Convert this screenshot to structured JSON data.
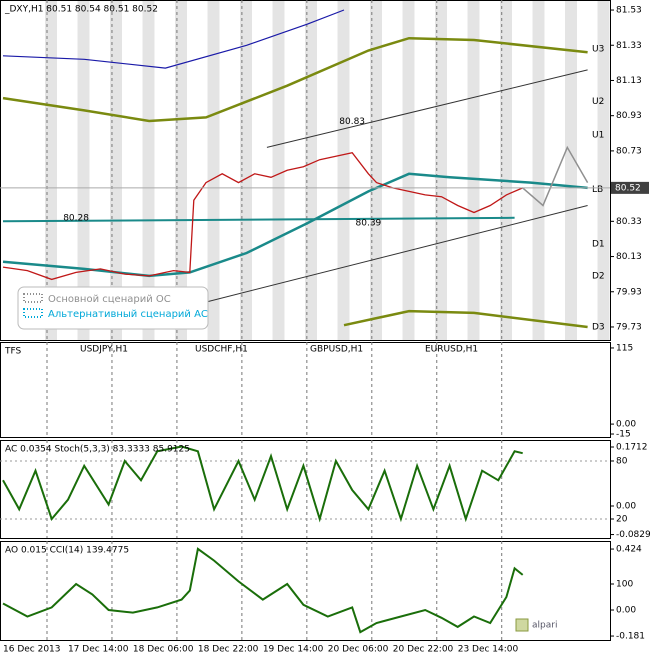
{
  "chart_data": [
    {
      "type": "line",
      "title": "_DXY,H1  80.51 80.54 80.51 80.52",
      "xlim": [
        0,
        150
      ],
      "ylim": [
        79.656,
        81.587
      ],
      "yticks": [
        81.53,
        81.33,
        81.13,
        80.93,
        80.73,
        80.33,
        80.13,
        79.93,
        79.73
      ],
      "last": 80.52,
      "levels": [
        {
          "label": "U3",
          "value": 81.31
        },
        {
          "label": "U2",
          "value": 81.01
        },
        {
          "label": "U1",
          "value": 80.82
        },
        {
          "label": "LB",
          "value": 80.51
        },
        {
          "label": "D1",
          "value": 80.2
        },
        {
          "label": "D2",
          "value": 80.02
        },
        {
          "label": "D3",
          "value": 79.73
        }
      ],
      "annotations": [
        {
          "x": 86,
          "value": 80.83,
          "position": "above"
        },
        {
          "x": 18,
          "value": 80.28,
          "position": "above"
        },
        {
          "x": 90,
          "value": 80.39,
          "position": "below"
        }
      ],
      "legend": [
        {
          "label": "Основной сценарий ОС",
          "color": "#909090"
        },
        {
          "label": "Альтернативный сценарий АС",
          "color": "#00a8d8"
        }
      ],
      "series": [
        {
          "color": "#1a1aa8",
          "width": 1.2,
          "x": [
            0,
            20,
            40,
            60,
            75,
            84
          ],
          "values": [
            81.27,
            81.25,
            81.2,
            81.33,
            81.45,
            81.53
          ]
        },
        {
          "color": "#7a8a10",
          "width": 2.5,
          "x": [
            0,
            20,
            36,
            50,
            70,
            90,
            100,
            116,
            144
          ],
          "values": [
            81.03,
            80.96,
            80.9,
            80.92,
            81.1,
            81.3,
            81.37,
            81.36,
            81.29
          ]
        },
        {
          "color": "#7a8a10",
          "width": 2.5,
          "x": [
            84,
            100,
            116,
            144
          ],
          "values": [
            79.74,
            79.82,
            79.81,
            79.73
          ]
        },
        {
          "color": "#1a8a8a",
          "width": 2.5,
          "x": [
            0,
            20,
            36,
            46,
            60,
            75,
            90,
            100,
            110,
            130,
            144
          ],
          "values": [
            80.1,
            80.06,
            80.02,
            80.04,
            80.15,
            80.32,
            80.5,
            80.6,
            80.58,
            80.55,
            80.52
          ]
        },
        {
          "color": "#1a8a8a",
          "width": 2,
          "x": [
            0,
            126
          ],
          "values": [
            80.33,
            80.35
          ]
        },
        {
          "color": "#333333",
          "width": 1,
          "x": [
            65,
            144
          ],
          "values": [
            80.75,
            81.19
          ]
        },
        {
          "color": "#333333",
          "width": 1,
          "x": [
            48,
            144
          ],
          "values": [
            79.86,
            80.42
          ]
        },
        {
          "color": "#c01818",
          "width": 1.3,
          "x": [
            0,
            6,
            12,
            18,
            24,
            30,
            36,
            42,
            46,
            47,
            50,
            54,
            58,
            62,
            66,
            70,
            74,
            78,
            82,
            86,
            90,
            92,
            96,
            100,
            104,
            108,
            112,
            116,
            120,
            124,
            128
          ],
          "values": [
            80.07,
            80.05,
            80.0,
            80.04,
            80.06,
            80.03,
            80.02,
            80.05,
            80.04,
            80.45,
            80.55,
            80.6,
            80.55,
            80.6,
            80.58,
            80.62,
            80.64,
            80.68,
            80.7,
            80.72,
            80.6,
            80.55,
            80.52,
            80.5,
            80.48,
            80.47,
            80.42,
            80.38,
            80.42,
            80.48,
            80.52
          ]
        },
        {
          "color": "#909090",
          "width": 1.5,
          "x": [
            128,
            133,
            139,
            144
          ],
          "values": [
            80.52,
            80.42,
            80.75,
            80.55
          ]
        }
      ]
    },
    {
      "type": "line",
      "title": "TFS",
      "labels": [
        "USDJPY,H1",
        "USDCHF,H1",
        "GBPUSD,H1",
        "EURUSD,H1"
      ],
      "xlim": [
        0,
        150
      ],
      "ylim": [
        -19.5,
        124
      ],
      "yticks": [
        115,
        {
          "value": 0,
          "label": "0.00"
        },
        -15
      ],
      "series": []
    },
    {
      "type": "line",
      "title": "AC 0.0354  Stoch(5,3,3) 83.3333 85.9125",
      "xlim": [
        0,
        150
      ],
      "ylim": [
        0.35,
        101.7
      ],
      "yticks": [
        80,
        20
      ],
      "grid": true,
      "y2lim": [
        -0.0929,
        0.1915
      ],
      "y2ticks": [
        0.1712,
        {
          "value": 0,
          "label": "0.00"
        },
        -0.0829
      ],
      "series": [
        {
          "color": "#1a6e0a",
          "width": 2,
          "x": [
            0,
            4,
            8,
            12,
            16,
            20,
            26,
            30,
            34,
            38,
            44,
            48,
            52,
            58,
            62,
            66,
            70,
            74,
            78,
            82,
            86,
            90,
            94,
            98,
            102,
            106,
            110,
            114,
            118,
            122,
            126,
            128
          ],
          "values": [
            60,
            30,
            70,
            20,
            40,
            75,
            35,
            80,
            60,
            90,
            95,
            90,
            30,
            80,
            40,
            85,
            30,
            75,
            20,
            80,
            50,
            30,
            70,
            20,
            75,
            30,
            75,
            20,
            70,
            60,
            90,
            88
          ]
        }
      ]
    },
    {
      "type": "line",
      "title": "AO 0.015  CCI(14) 139.4775",
      "xlim": [
        0,
        150
      ],
      "ylim": [
        -331,
        431
      ],
      "yticks": [
        100
      ],
      "y2lim": [
        -0.2085,
        0.48
      ],
      "y2ticks": [
        0.424,
        {
          "value": 0,
          "label": "0.00"
        },
        -0.181
      ],
      "xticks": [
        {
          "value": 0,
          "label": "16 Dec 2013"
        },
        {
          "value": 16,
          "label": "17 Dec 14:00"
        },
        {
          "value": 32,
          "label": "18 Dec 06:00"
        },
        {
          "value": 48,
          "label": "18 Dec 22:00"
        },
        {
          "value": 64,
          "label": "19 Dec 14:00"
        },
        {
          "value": 80,
          "label": "20 Dec 06:00"
        },
        {
          "value": 96,
          "label": "20 Dec 22:00"
        },
        {
          "value": 112,
          "label": "23 Dec 14:00"
        }
      ],
      "logo": "alpari",
      "series": [
        {
          "color": "#1a6e0a",
          "width": 2,
          "x": [
            0,
            6,
            12,
            18,
            22,
            26,
            32,
            38,
            44,
            46,
            48,
            52,
            58,
            64,
            70,
            74,
            80,
            86,
            88,
            92,
            98,
            104,
            108,
            112,
            116,
            120,
            124,
            126,
            128
          ],
          "values": [
            -50,
            -150,
            -80,
            100,
            20,
            -100,
            -120,
            -80,
            -20,
            50,
            370,
            280,
            120,
            -20,
            100,
            -60,
            -150,
            -80,
            -270,
            -200,
            -150,
            -100,
            -160,
            -230,
            -150,
            -200,
            0,
            220,
            170
          ]
        }
      ]
    }
  ]
}
